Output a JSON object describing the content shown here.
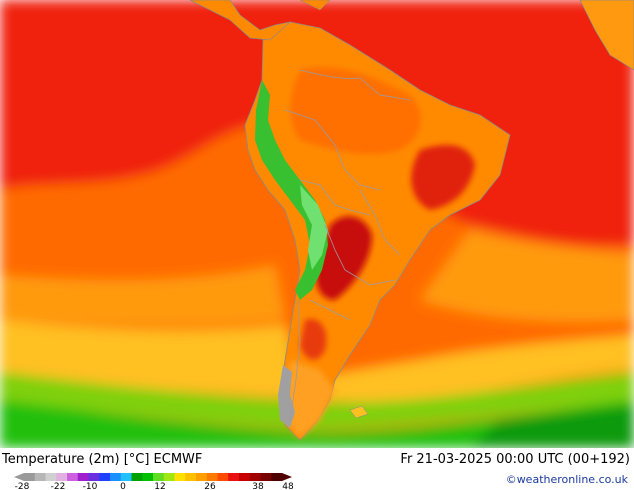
{
  "map": {
    "region": "South America",
    "palette": {
      "ocean_hot": "#f0200a",
      "ocean_warm": "#ff6a00",
      "ocean_mild": "#ff9a10",
      "ocean_yellow": "#ffc020",
      "ocean_cool": "#7fd010",
      "ocean_cold": "#22c010",
      "ocean_coldest": "#109a10",
      "land_hot": "#ff8a00",
      "land_warm": "#ff6400",
      "land_very_hot": "#d01010",
      "andes": "#38c030",
      "andes_peak": "#70e070",
      "patagonia_ice": "#a0a0a0",
      "border": "#9a9aa6",
      "coast": "#8a8a8a"
    }
  },
  "footer": {
    "title": "Temperature (2m) [°C] ECMWF",
    "timestamp": "Fr 21-03-2025 00:00 UTC (00+192)",
    "credit": "©weatheronline.co.uk"
  },
  "legend": {
    "colors": [
      "#9a9a9a",
      "#b6b6b6",
      "#d0d0d0",
      "#e0b0e0",
      "#cc60e0",
      "#a020d0",
      "#6a30e0",
      "#2040ff",
      "#1a90ff",
      "#20c0ff",
      "#00a000",
      "#00c000",
      "#60dd20",
      "#a0e610",
      "#ffe000",
      "#ffc000",
      "#ffa000",
      "#ff7a00",
      "#ff4a00",
      "#e81010",
      "#c80000",
      "#a00000",
      "#780000",
      "#500000"
    ],
    "tick_labels": [
      "-28",
      "-22",
      "-10",
      "0",
      "12",
      "26",
      "38",
      "48"
    ]
  }
}
